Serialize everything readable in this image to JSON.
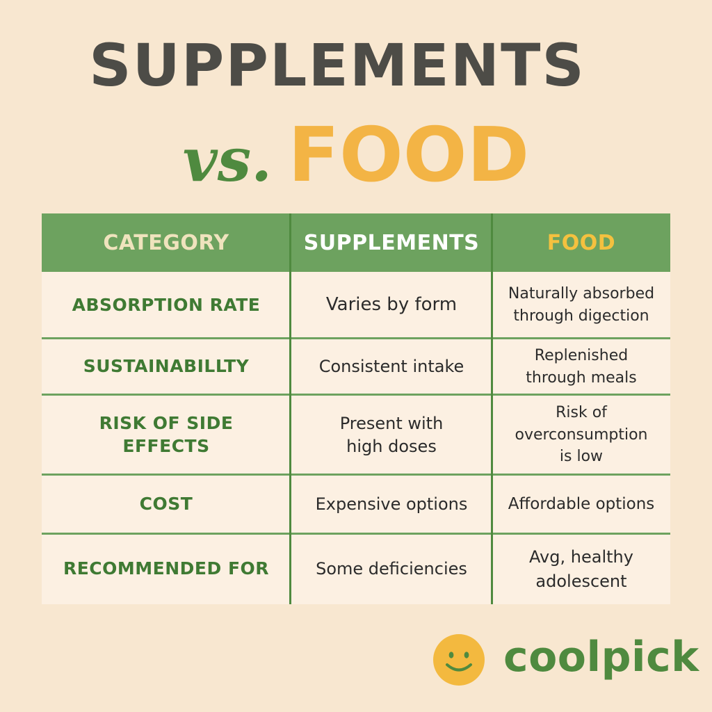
{
  "title": {
    "line1": "SUPPLEMENTS",
    "vs": "vs.",
    "food": "FOOD"
  },
  "table": {
    "headers": [
      "CATEGORY",
      "SUPPLEMENTS",
      "FOOD"
    ],
    "rows": [
      {
        "category": "ABSORPTION RATE",
        "supplements": "Varies by form",
        "food": [
          "Naturally absorbed",
          "through digection"
        ]
      },
      {
        "category": "SUSTAINABILLTY",
        "supplements": "Consistent intake",
        "food": [
          "Replenished",
          "through meals"
        ]
      },
      {
        "category": [
          "RISK OF SIDE",
          "EFFECTS"
        ],
        "supplements": [
          "Present with",
          "high doses"
        ],
        "food": [
          "Risk of",
          "overconsumption",
          "is low"
        ]
      },
      {
        "category": "COST",
        "supplements": "Expensive options",
        "food": "Affordable options"
      },
      {
        "category": "RECOMMENDED FOR",
        "supplements": "Some deficiencies",
        "food": [
          "Avg, healthy",
          "adolescent"
        ]
      }
    ]
  },
  "logo": {
    "text": "coolpick",
    "icon": "smiley-face-icon"
  },
  "colors": {
    "background": "#f8e7d0",
    "green": "#4f8a3f",
    "header_green": "#6da25f",
    "yellow": "#f3b445",
    "dark_gray": "#4d4c47"
  }
}
